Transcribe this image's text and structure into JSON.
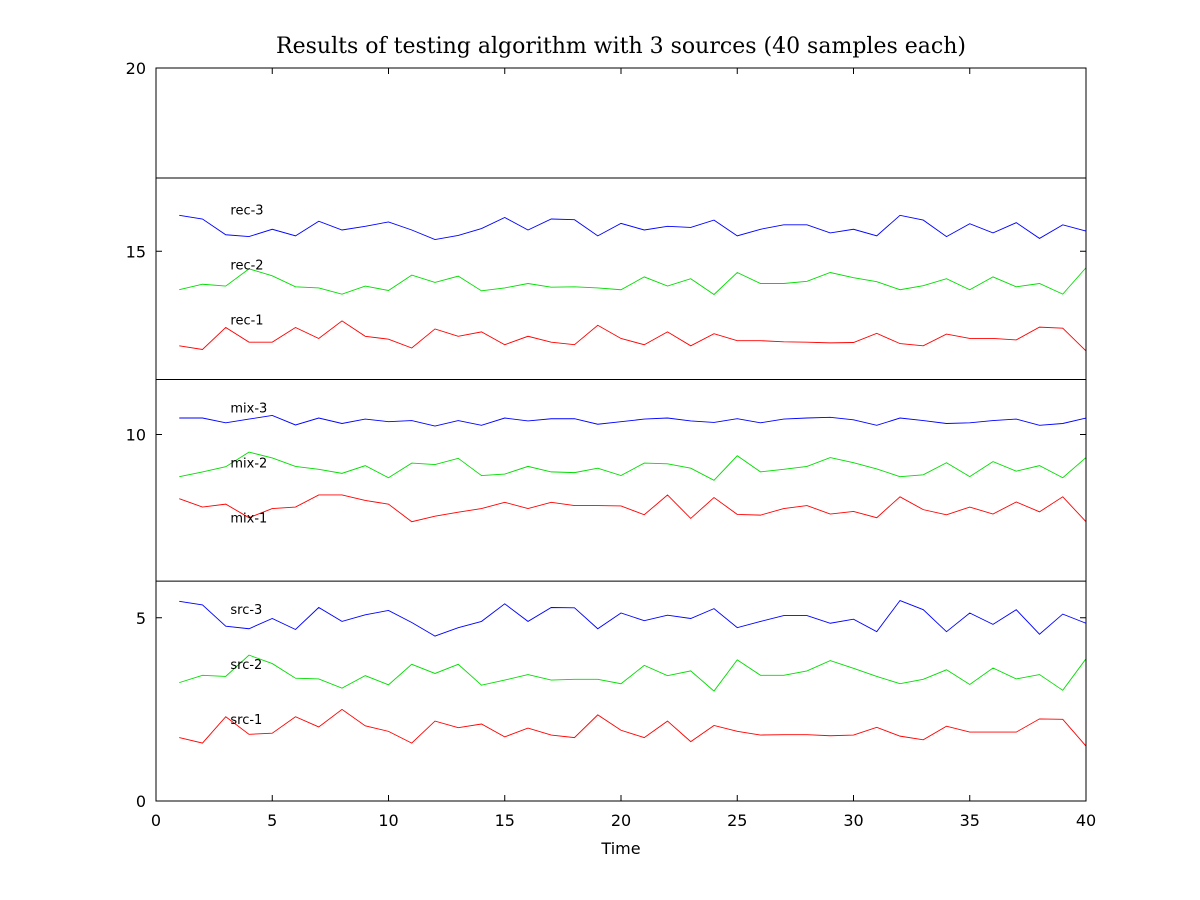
{
  "chart_data": {
    "type": "line",
    "title": "Results of testing algorithm with 3 sources (40 samples each)",
    "xlabel": "Time",
    "ylabel": "",
    "xlim": [
      0,
      40
    ],
    "ylim": [
      0,
      20
    ],
    "x_ticks": [
      0,
      5,
      10,
      15,
      20,
      25,
      30,
      35,
      40
    ],
    "y_ticks": [
      0,
      5,
      10,
      15,
      20
    ],
    "grid": false,
    "legend": "inline labels",
    "separators": [
      6,
      11.5,
      17
    ],
    "x": [
      1,
      2,
      3,
      4,
      5,
      6,
      7,
      8,
      9,
      10,
      11,
      12,
      13,
      14,
      15,
      16,
      17,
      18,
      19,
      20,
      21,
      22,
      23,
      24,
      25,
      26,
      27,
      28,
      29,
      30,
      31,
      32,
      33,
      34,
      35,
      36,
      37,
      38,
      39,
      40
    ],
    "series": [
      {
        "name": "src-1",
        "color": "#ff0000",
        "label_at": [
          3.2,
          2.1
        ],
        "values": [
          1.73,
          1.58,
          2.3,
          1.82,
          1.85,
          2.3,
          2.02,
          2.5,
          2.05,
          1.9,
          1.58,
          2.18,
          2.0,
          2.1,
          1.75,
          1.99,
          1.8,
          1.73,
          2.35,
          1.93,
          1.73,
          2.18,
          1.62,
          2.06,
          1.9,
          1.8,
          1.81,
          1.81,
          1.78,
          1.8,
          2.01,
          1.77,
          1.67,
          2.04,
          1.88,
          1.88,
          1.88,
          2.24,
          2.23,
          1.5
        ]
      },
      {
        "name": "src-2",
        "color": "#00dd00",
        "label_at": [
          3.2,
          3.6
        ],
        "values": [
          3.23,
          3.43,
          3.4,
          3.98,
          3.75,
          3.35,
          3.33,
          3.08,
          3.42,
          3.17,
          3.73,
          3.48,
          3.73,
          3.16,
          3.3,
          3.45,
          3.3,
          3.32,
          3.32,
          3.2,
          3.7,
          3.42,
          3.55,
          3.0,
          3.85,
          3.43,
          3.43,
          3.55,
          3.83,
          3.62,
          3.4,
          3.2,
          3.32,
          3.58,
          3.18,
          3.63,
          3.33,
          3.45,
          3.02,
          3.88
        ]
      },
      {
        "name": "src-3",
        "color": "#0000ff",
        "label_at": [
          3.2,
          5.1
        ],
        "values": [
          5.45,
          5.35,
          4.77,
          4.7,
          4.98,
          4.68,
          5.28,
          4.9,
          5.08,
          5.2,
          4.87,
          4.5,
          4.73,
          4.9,
          5.38,
          4.9,
          5.28,
          5.27,
          4.7,
          5.13,
          4.92,
          5.07,
          4.98,
          5.25,
          4.73,
          4.9,
          5.06,
          5.06,
          4.85,
          4.96,
          4.62,
          5.47,
          5.22,
          4.62,
          5.13,
          4.82,
          5.22,
          4.55,
          5.1,
          4.85
        ]
      },
      {
        "name": "mix-1",
        "color": "#ff0000",
        "label_at": [
          3.2,
          7.6
        ],
        "values": [
          8.25,
          8.02,
          8.1,
          7.73,
          7.98,
          8.02,
          8.35,
          8.35,
          8.2,
          8.1,
          7.62,
          7.77,
          7.88,
          7.98,
          8.15,
          7.98,
          8.15,
          8.06,
          8.06,
          8.05,
          7.81,
          8.35,
          7.71,
          8.28,
          7.82,
          7.8,
          7.98,
          8.06,
          7.83,
          7.9,
          7.73,
          8.3,
          7.95,
          7.81,
          8.02,
          7.83,
          8.16,
          7.89,
          8.3,
          7.62
        ]
      },
      {
        "name": "mix-2",
        "color": "#00dd00",
        "label_at": [
          3.2,
          9.1
        ],
        "values": [
          8.85,
          8.98,
          9.12,
          9.52,
          9.36,
          9.13,
          9.05,
          8.94,
          9.15,
          8.82,
          9.22,
          9.18,
          9.35,
          8.88,
          8.92,
          9.13,
          8.98,
          8.96,
          9.08,
          8.88,
          9.22,
          9.2,
          9.08,
          8.75,
          9.42,
          8.98,
          9.05,
          9.13,
          9.37,
          9.23,
          9.06,
          8.85,
          8.9,
          9.23,
          8.85,
          9.26,
          9.0,
          9.15,
          8.82,
          9.37
        ]
      },
      {
        "name": "mix-3",
        "color": "#0000ff",
        "label_at": [
          3.2,
          10.6
        ],
        "values": [
          10.45,
          10.45,
          10.32,
          10.42,
          10.52,
          10.26,
          10.45,
          10.3,
          10.42,
          10.35,
          10.38,
          10.23,
          10.38,
          10.25,
          10.45,
          10.37,
          10.43,
          10.43,
          10.28,
          10.35,
          10.42,
          10.45,
          10.37,
          10.33,
          10.43,
          10.32,
          10.42,
          10.45,
          10.47,
          10.4,
          10.25,
          10.45,
          10.38,
          10.3,
          10.32,
          10.38,
          10.42,
          10.25,
          10.3,
          10.45
        ]
      },
      {
        "name": "rec-1",
        "color": "#ff0000",
        "label_at": [
          3.2,
          13.0
        ],
        "values": [
          12.42,
          12.32,
          12.92,
          12.52,
          12.52,
          12.92,
          12.62,
          13.1,
          12.68,
          12.6,
          12.36,
          12.88,
          12.68,
          12.8,
          12.45,
          12.68,
          12.52,
          12.45,
          12.98,
          12.62,
          12.45,
          12.8,
          12.42,
          12.75,
          12.56,
          12.56,
          12.53,
          12.52,
          12.5,
          12.51,
          12.76,
          12.48,
          12.42,
          12.74,
          12.62,
          12.62,
          12.58,
          12.93,
          12.9,
          12.28
        ]
      },
      {
        "name": "rec-2",
        "color": "#00dd00",
        "label_at": [
          3.2,
          14.5
        ],
        "values": [
          13.95,
          14.1,
          14.05,
          14.52,
          14.33,
          14.03,
          14.0,
          13.83,
          14.05,
          13.93,
          14.35,
          14.15,
          14.32,
          13.92,
          14.0,
          14.12,
          14.02,
          14.03,
          14.0,
          13.95,
          14.3,
          14.05,
          14.25,
          13.82,
          14.42,
          14.12,
          14.12,
          14.18,
          14.42,
          14.28,
          14.17,
          13.95,
          14.06,
          14.25,
          13.95,
          14.3,
          14.03,
          14.12,
          13.83,
          14.55
        ]
      },
      {
        "name": "rec-3",
        "color": "#0000ff",
        "label_at": [
          3.2,
          16.0
        ],
        "values": [
          15.98,
          15.88,
          15.45,
          15.4,
          15.6,
          15.42,
          15.82,
          15.58,
          15.68,
          15.8,
          15.58,
          15.32,
          15.43,
          15.62,
          15.92,
          15.58,
          15.88,
          15.86,
          15.42,
          15.76,
          15.58,
          15.68,
          15.65,
          15.85,
          15.42,
          15.6,
          15.72,
          15.72,
          15.5,
          15.6,
          15.42,
          15.98,
          15.85,
          15.4,
          15.75,
          15.5,
          15.78,
          15.35,
          15.72,
          15.55
        ]
      }
    ]
  }
}
